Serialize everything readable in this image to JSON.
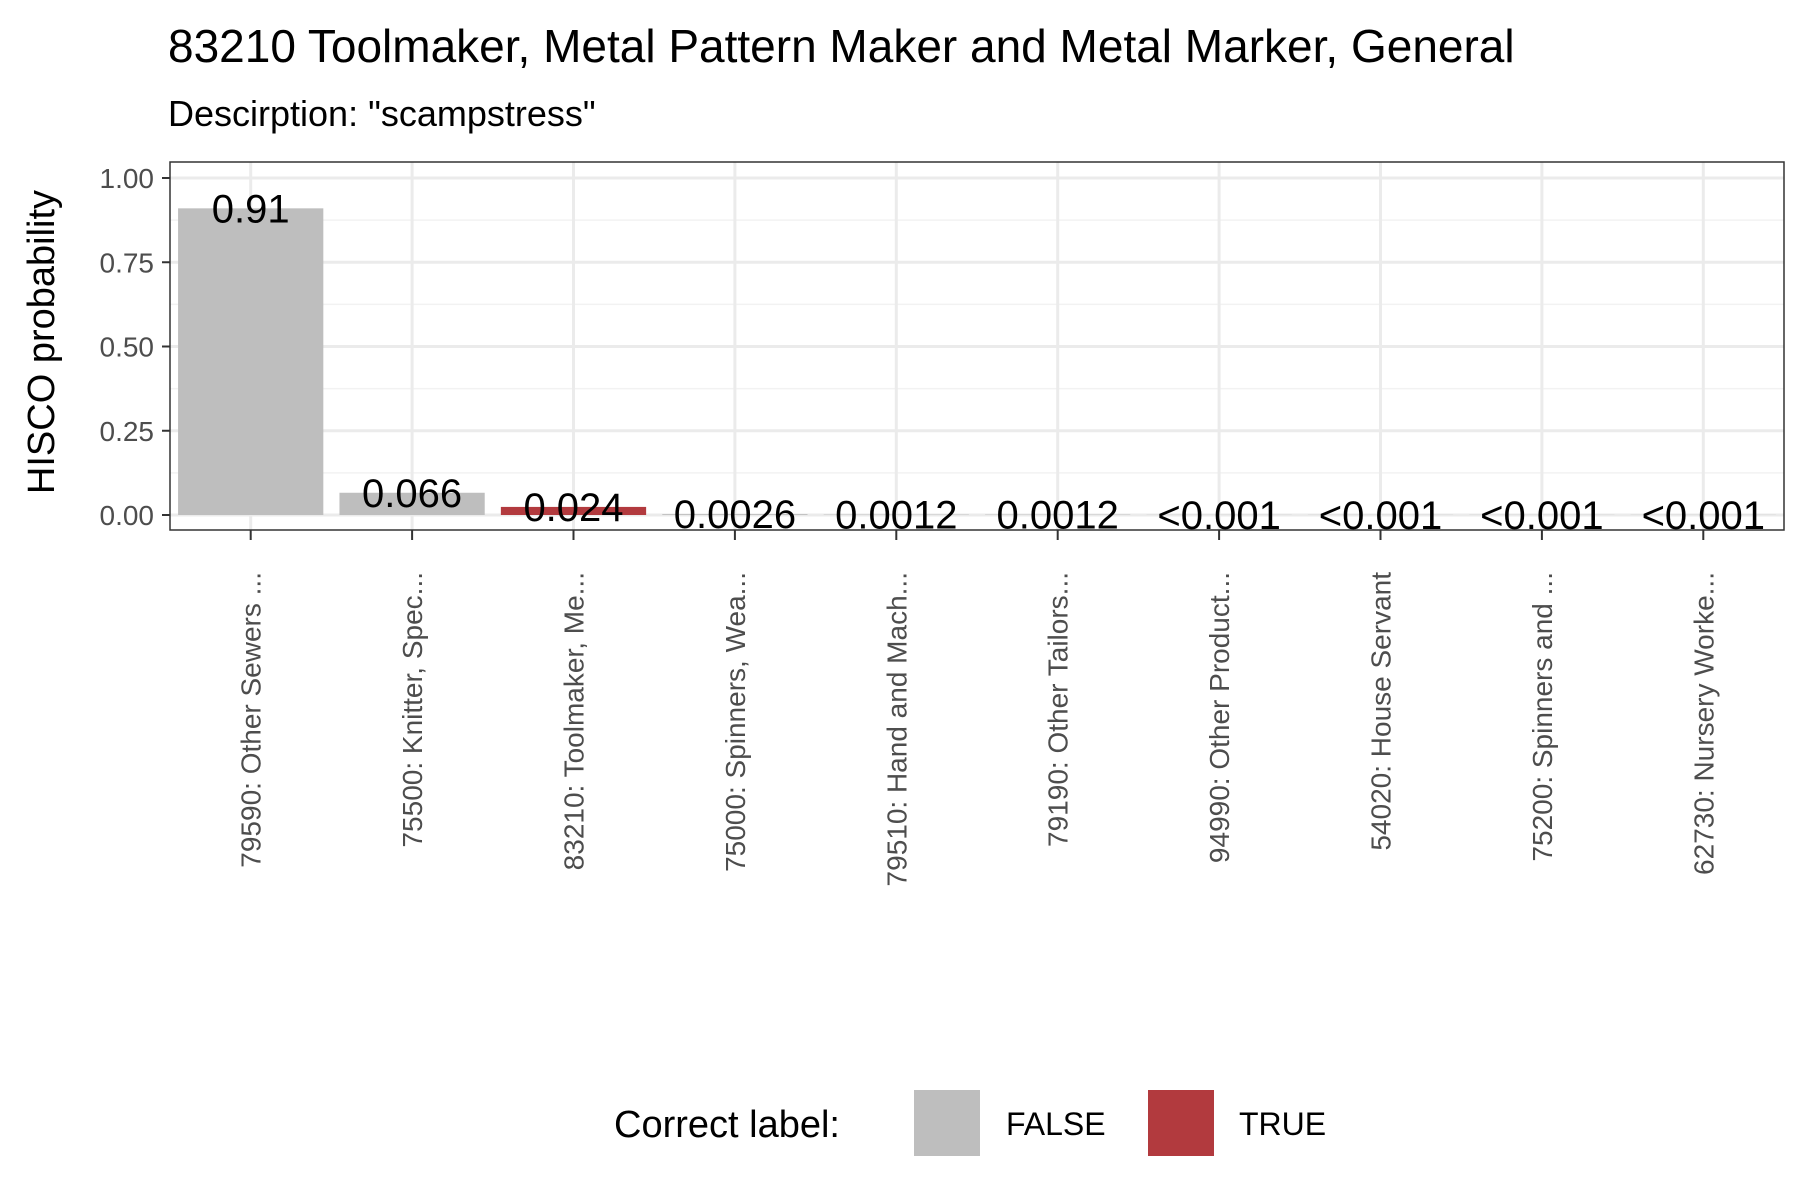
{
  "chart_data": {
    "type": "bar",
    "title": "83210 Toolmaker, Metal Pattern Maker and Metal Marker, General",
    "subtitle": "Descirption: \"scampstress\"",
    "xlabel": "",
    "ylabel": "HISCO probability",
    "ylim": [
      0,
      1.04
    ],
    "yticks": [
      "0.00",
      "0.25",
      "0.50",
      "0.75",
      "1.00"
    ],
    "grid": true,
    "categories": [
      "79590: Other Sewers ...",
      "75500: Knitter, Spec...",
      "83210: Toolmaker, Me...",
      "75000: Spinners, Wea...",
      "79510: Hand and Mach...",
      "79190: Other Tailors...",
      "94990: Other Product...",
      "54020: House Servant",
      "75200: Spinners and ...",
      "62730: Nursery Worke..."
    ],
    "values": [
      0.91,
      0.066,
      0.024,
      0.0026,
      0.0012,
      0.0012,
      0.0005,
      0.0005,
      0.0005,
      0.0005
    ],
    "labels": [
      "0.91",
      "0.066",
      "0.024",
      "0.0026",
      "0.0012",
      "0.0012",
      "<0.001",
      "<0.001",
      "<0.001",
      "<0.001"
    ],
    "correct": [
      false,
      false,
      true,
      false,
      false,
      false,
      false,
      false,
      false,
      false
    ],
    "legend": {
      "title": "Correct label:",
      "placement": "bottom",
      "entries": [
        {
          "label": "FALSE",
          "color": "#bebebe"
        },
        {
          "label": "TRUE",
          "color": "#b23a3e"
        }
      ]
    }
  }
}
